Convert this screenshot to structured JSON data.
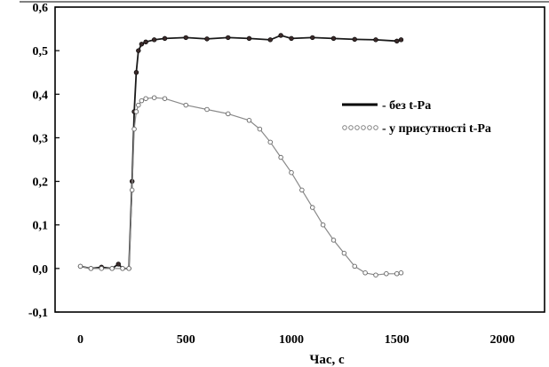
{
  "chart_data": {
    "type": "line",
    "xlabel": "Час, с",
    "ylabel": "",
    "xlim": [
      -120,
      2200
    ],
    "ylim": [
      -0.1,
      0.6
    ],
    "x_ticks": [
      0,
      500,
      1000,
      1500,
      2000
    ],
    "x_tick_labels": [
      "0",
      "500",
      "1000",
      "1500",
      "2000"
    ],
    "y_ticks": [
      -0.1,
      0.0,
      0.1,
      0.2,
      0.3,
      0.4,
      0.5,
      0.6
    ],
    "y_tick_labels": [
      "-0,1",
      "0,0",
      "0,1",
      "0,2",
      "0,3",
      "0,4",
      "0,5",
      "0,6"
    ],
    "grid": false,
    "legend_position": "right",
    "series": [
      {
        "name": "- без t-Pa",
        "color": "#1a1a1a",
        "marker": "filled",
        "x": [
          0,
          50,
          100,
          150,
          180,
          200,
          230,
          245,
          255,
          265,
          275,
          290,
          310,
          350,
          400,
          500,
          600,
          700,
          800,
          900,
          950,
          1000,
          1100,
          1200,
          1300,
          1400,
          1500,
          1520
        ],
        "y": [
          0.005,
          0.0,
          0.003,
          0.0,
          0.01,
          0.0,
          0.0,
          0.2,
          0.36,
          0.45,
          0.5,
          0.515,
          0.52,
          0.525,
          0.528,
          0.53,
          0.527,
          0.53,
          0.528,
          0.525,
          0.535,
          0.528,
          0.53,
          0.528,
          0.526,
          0.525,
          0.522,
          0.525
        ]
      },
      {
        "name": "- у присутності t-Pa",
        "color": "#8a8a8a",
        "marker": "open",
        "x": [
          0,
          50,
          100,
          150,
          200,
          230,
          245,
          255,
          265,
          275,
          290,
          310,
          350,
          400,
          500,
          600,
          700,
          800,
          850,
          900,
          950,
          1000,
          1050,
          1100,
          1150,
          1200,
          1250,
          1300,
          1350,
          1400,
          1450,
          1500,
          1520
        ],
        "y": [
          0.005,
          0.0,
          0.0,
          0.0,
          0.0,
          0.0,
          0.18,
          0.32,
          0.36,
          0.375,
          0.385,
          0.39,
          0.392,
          0.39,
          0.375,
          0.365,
          0.355,
          0.34,
          0.32,
          0.29,
          0.255,
          0.22,
          0.18,
          0.14,
          0.1,
          0.065,
          0.035,
          0.005,
          -0.01,
          -0.015,
          -0.012,
          -0.012,
          -0.01
        ]
      }
    ]
  }
}
